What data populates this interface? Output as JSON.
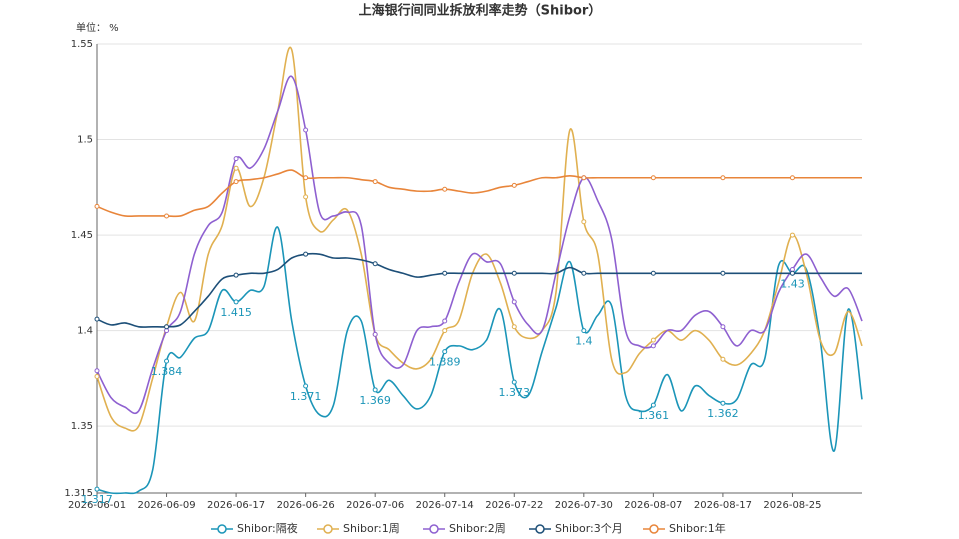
{
  "chart_data": {
    "type": "line",
    "title": "上海银行间同业拆放利率走势（Shibor）",
    "unit_label": "单位： %",
    "categories": [
      "2026-06-01",
      null,
      null,
      null,
      null,
      "2026-06-09",
      null,
      null,
      null,
      null,
      "2026-06-17",
      null,
      null,
      null,
      null,
      "2026-06-26",
      null,
      null,
      null,
      null,
      "2026-07-06",
      null,
      null,
      null,
      null,
      "2026-07-14",
      null,
      null,
      null,
      null,
      "2026-07-22",
      null,
      null,
      null,
      null,
      "2026-07-30",
      null,
      null,
      null,
      null,
      "2026-08-07",
      null,
      null,
      null,
      null,
      "2026-08-17",
      null,
      null,
      null,
      null,
      "2026-08-25",
      null,
      null,
      null,
      null,
      null
    ],
    "ylim": [
      1.315,
      1.55
    ],
    "yticks": [
      1.315,
      1.35,
      1.4,
      1.45,
      1.5,
      1.55
    ],
    "grid": true,
    "legend": "bottom",
    "series": [
      {
        "name": "Shibor:隔夜",
        "color": "#1b95b8",
        "labels": true,
        "values": [
          1.317,
          1.315,
          1.315,
          1.316,
          1.327,
          1.384,
          1.386,
          1.396,
          1.4,
          1.421,
          1.415,
          1.421,
          1.423,
          1.454,
          1.405,
          1.371,
          1.356,
          1.361,
          1.4,
          1.405,
          1.369,
          1.374,
          1.366,
          1.359,
          1.366,
          1.389,
          1.392,
          1.39,
          1.395,
          1.411,
          1.373,
          1.366,
          1.389,
          1.412,
          1.436,
          1.4,
          1.408,
          1.413,
          1.366,
          1.358,
          1.361,
          1.377,
          1.358,
          1.371,
          1.366,
          1.362,
          1.364,
          1.382,
          1.385,
          1.434,
          1.43,
          1.432,
          1.395,
          1.337,
          1.411,
          1.364
        ]
      },
      {
        "name": "Shibor:1周",
        "color": "#e0b050",
        "values": [
          1.376,
          1.355,
          1.349,
          1.35,
          1.375,
          1.402,
          1.42,
          1.405,
          1.44,
          1.455,
          1.485,
          1.465,
          1.48,
          1.515,
          1.547,
          1.47,
          1.452,
          1.458,
          1.463,
          1.44,
          1.398,
          1.39,
          1.383,
          1.38,
          1.385,
          1.4,
          1.405,
          1.43,
          1.44,
          1.425,
          1.402,
          1.396,
          1.4,
          1.42,
          1.505,
          1.457,
          1.44,
          1.385,
          1.378,
          1.388,
          1.395,
          1.4,
          1.395,
          1.4,
          1.395,
          1.385,
          1.382,
          1.388,
          1.4,
          1.425,
          1.45,
          1.43,
          1.395,
          1.388,
          1.41,
          1.392
        ]
      },
      {
        "name": "Shibor:2周",
        "color": "#8e60d0",
        "values": [
          1.379,
          1.365,
          1.36,
          1.358,
          1.38,
          1.4,
          1.41,
          1.44,
          1.455,
          1.462,
          1.49,
          1.485,
          1.495,
          1.515,
          1.533,
          1.505,
          1.462,
          1.46,
          1.462,
          1.455,
          1.398,
          1.383,
          1.382,
          1.4,
          1.402,
          1.405,
          1.425,
          1.44,
          1.436,
          1.435,
          1.415,
          1.403,
          1.4,
          1.43,
          1.46,
          1.48,
          1.468,
          1.448,
          1.4,
          1.392,
          1.392,
          1.4,
          1.4,
          1.408,
          1.41,
          1.402,
          1.392,
          1.4,
          1.4,
          1.42,
          1.432,
          1.44,
          1.428,
          1.418,
          1.422,
          1.405
        ]
      },
      {
        "name": "Shibor:3个月",
        "color": "#1d4f78",
        "values": [
          1.406,
          1.403,
          1.404,
          1.402,
          1.402,
          1.402,
          1.403,
          1.41,
          1.418,
          1.427,
          1.429,
          1.43,
          1.43,
          1.432,
          1.438,
          1.44,
          1.44,
          1.438,
          1.438,
          1.437,
          1.435,
          1.432,
          1.43,
          1.428,
          1.429,
          1.43,
          1.43,
          1.43,
          1.43,
          1.43,
          1.43,
          1.43,
          1.43,
          1.43,
          1.433,
          1.43,
          1.43,
          1.43,
          1.43,
          1.43,
          1.43,
          1.43,
          1.43,
          1.43,
          1.43,
          1.43,
          1.43,
          1.43,
          1.43,
          1.43,
          1.43,
          1.43,
          1.43,
          1.43,
          1.43,
          1.43
        ]
      },
      {
        "name": "Shibor:1年",
        "color": "#e8853a",
        "values": [
          1.465,
          1.462,
          1.46,
          1.46,
          1.46,
          1.46,
          1.46,
          1.463,
          1.465,
          1.472,
          1.478,
          1.479,
          1.48,
          1.482,
          1.484,
          1.48,
          1.48,
          1.48,
          1.48,
          1.479,
          1.478,
          1.475,
          1.474,
          1.473,
          1.473,
          1.474,
          1.473,
          1.472,
          1.473,
          1.475,
          1.476,
          1.478,
          1.48,
          1.48,
          1.481,
          1.48,
          1.48,
          1.48,
          1.48,
          1.48,
          1.48,
          1.48,
          1.48,
          1.48,
          1.48,
          1.48,
          1.48,
          1.48,
          1.48,
          1.48,
          1.48,
          1.48,
          1.48,
          1.48,
          1.48,
          1.48
        ]
      }
    ]
  }
}
